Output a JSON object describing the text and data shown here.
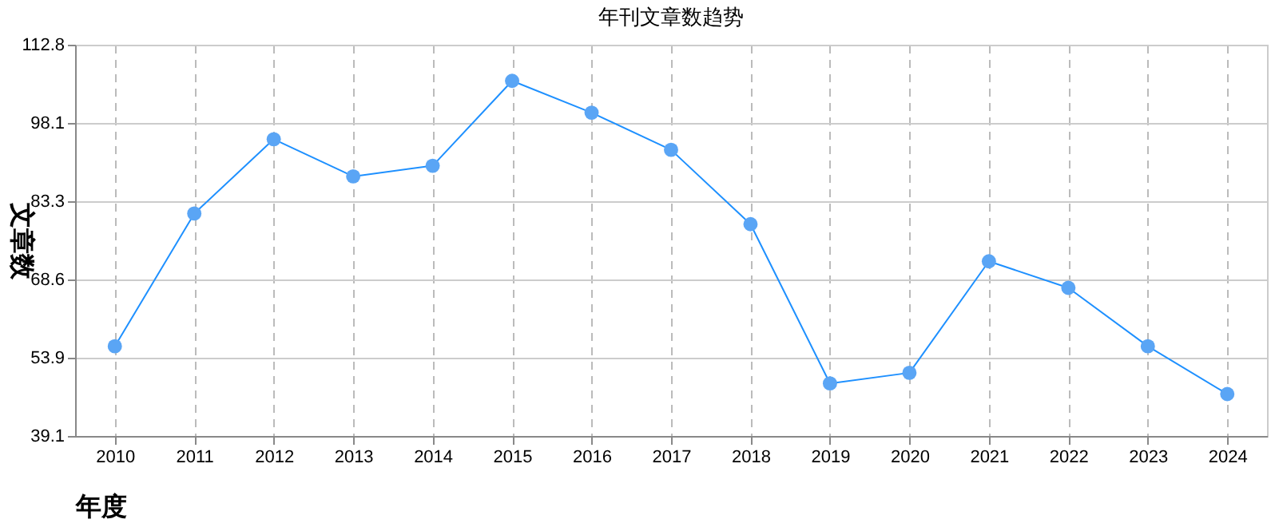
{
  "chart_data": {
    "type": "line",
    "title": "年刊文章数趋势",
    "xlabel": "年度",
    "ylabel": "文章数",
    "categories": [
      "2010",
      "2011",
      "2012",
      "2013",
      "2014",
      "2015",
      "2016",
      "2017",
      "2018",
      "2019",
      "2020",
      "2021",
      "2022",
      "2023",
      "2024"
    ],
    "series": [
      {
        "color": "#1e90ff",
        "values": [
          56,
          81,
          95,
          88,
          90,
          106,
          100,
          93,
          79,
          49,
          51,
          72,
          67,
          56,
          47
        ]
      }
    ],
    "ylim": [
      39.1,
      112.8
    ],
    "yticks": [
      39.1,
      53.9,
      68.6,
      83.3,
      98.1,
      112.8
    ],
    "grid": true,
    "marker": "circle",
    "line_style": "solid"
  }
}
